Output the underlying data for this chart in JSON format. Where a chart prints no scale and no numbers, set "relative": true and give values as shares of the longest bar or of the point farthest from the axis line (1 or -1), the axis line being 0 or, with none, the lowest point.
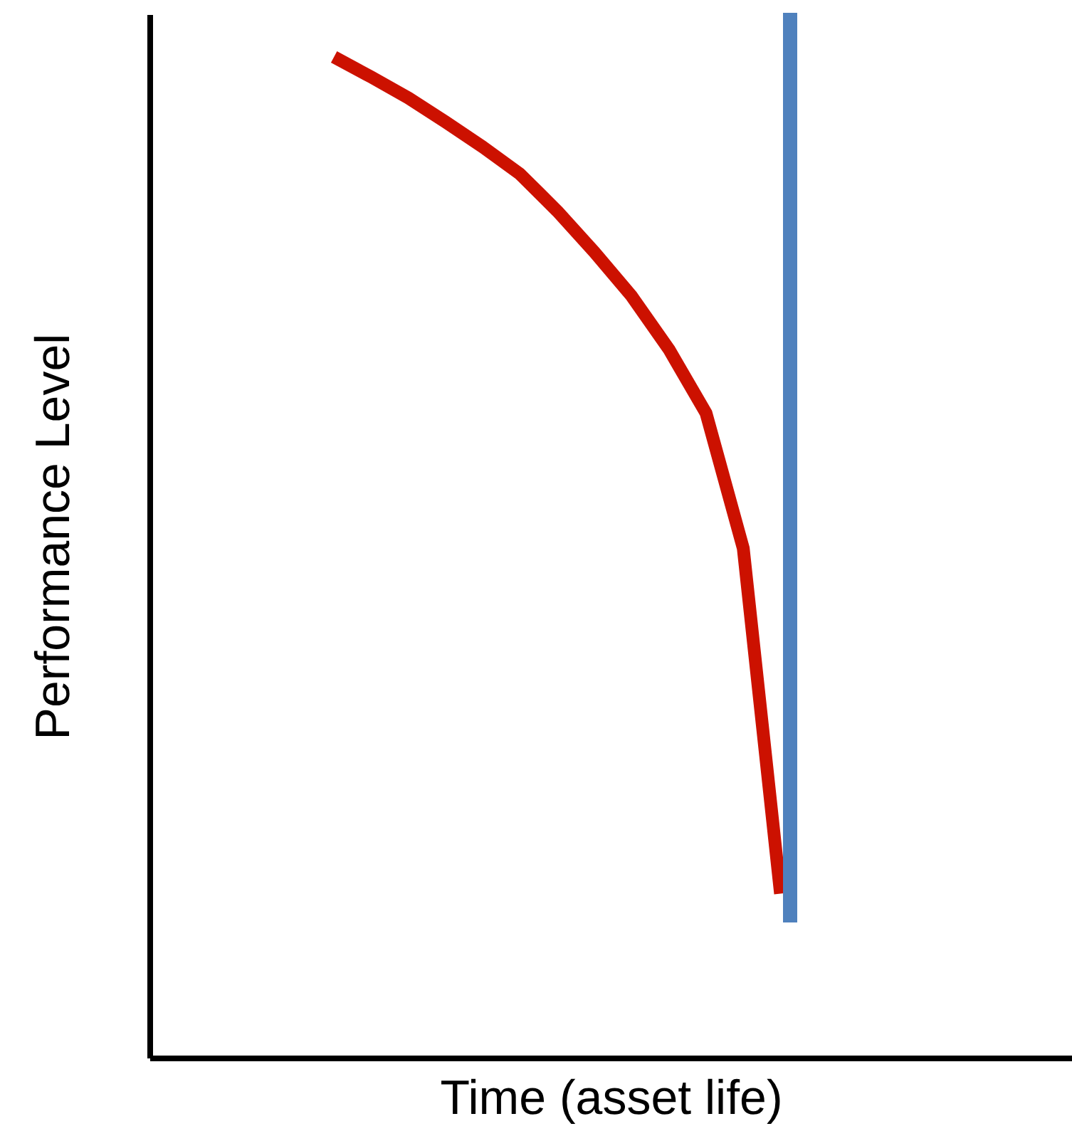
{
  "chart_data": {
    "type": "line",
    "relative": true,
    "xlabel": "Time (asset life)",
    "ylabel": "Performance Level",
    "line_style": "solid",
    "categories": [
      null,
      null,
      null,
      null,
      null,
      null,
      null,
      null,
      null,
      null,
      null,
      null,
      null
    ],
    "series": [
      {
        "color": "#cc1100",
        "values": [
          1,
          0.98,
          0.959,
          0.935,
          0.91,
          0.883,
          0.846,
          0.805,
          0.761,
          0.708,
          0.644,
          0.509,
          0.164
        ]
      }
    ]
  }
}
